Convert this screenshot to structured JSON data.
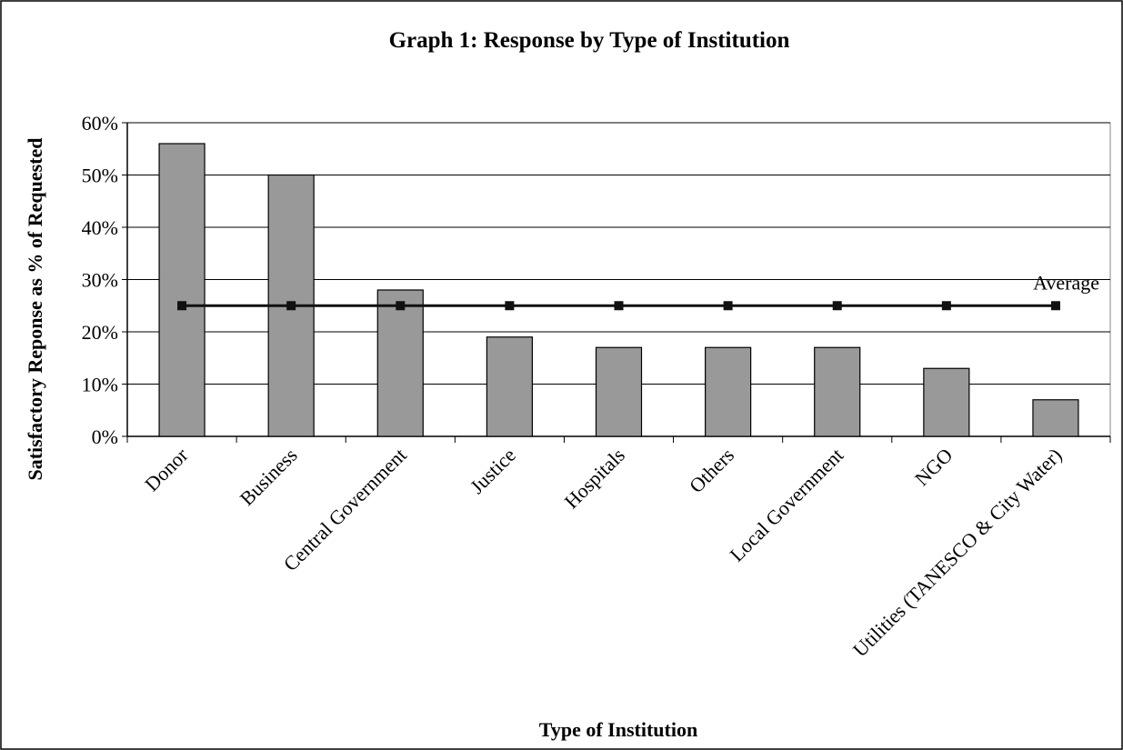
{
  "chart_data": {
    "type": "bar",
    "title": "Graph 1: Response by Type of Institution",
    "x_label": "Type of Institution",
    "y_label": "Satisfactory Reponse as % of Requested",
    "categories": [
      "Donor",
      "Business",
      "Central Government",
      "Justice",
      "Hospitals",
      "Others",
      "Local Government",
      "NGO",
      "Utilities (TANESCO & City Water)"
    ],
    "series": [
      {
        "type": "bar",
        "color": "#999999",
        "values": [
          56,
          50,
          28,
          19,
          17,
          17,
          17,
          13,
          7
        ]
      },
      {
        "type": "line",
        "name": "Average",
        "color": "#111111",
        "values": [
          25,
          25,
          25,
          25,
          25,
          25,
          25,
          25,
          25
        ]
      }
    ],
    "ylim": [
      0,
      60
    ],
    "yticks": [
      {
        "value": 0,
        "label": "0%"
      },
      {
        "value": 10,
        "label": "10%"
      },
      {
        "value": 20,
        "label": "20%"
      },
      {
        "value": 30,
        "label": "30%"
      },
      {
        "value": 40,
        "label": "40%"
      },
      {
        "value": 50,
        "label": "50%"
      },
      {
        "value": 60,
        "label": "60%"
      }
    ],
    "grid": true
  }
}
